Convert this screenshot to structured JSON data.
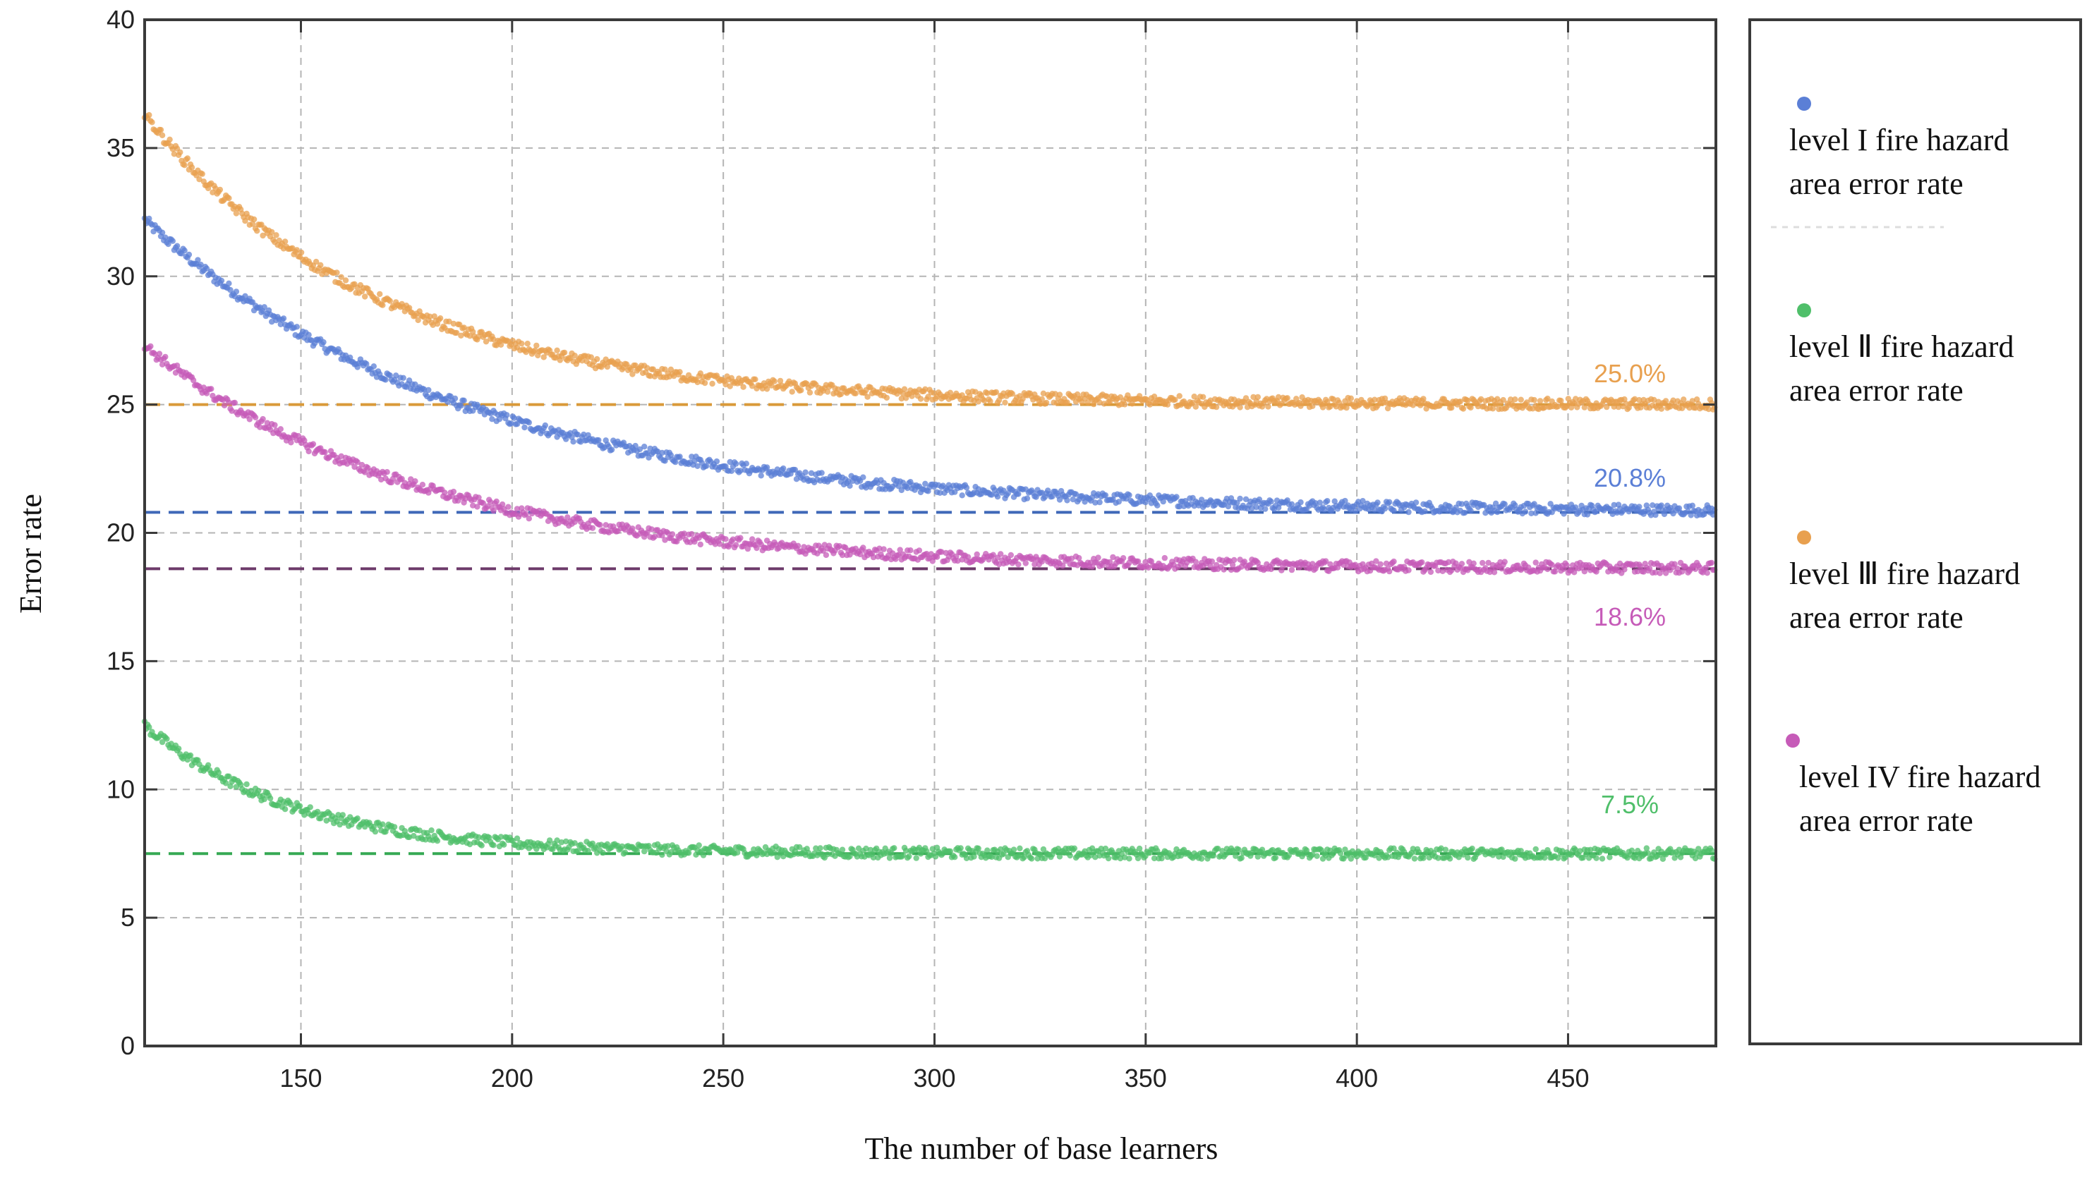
{
  "chart_data": {
    "type": "scatter",
    "title": "",
    "xlabel": "The number of base learners",
    "ylabel": "Error rate",
    "xlim": [
      113,
      485
    ],
    "ylim": [
      0,
      40
    ],
    "x_ticks": [
      150,
      200,
      250,
      300,
      350,
      400,
      450
    ],
    "y_ticks": [
      0,
      5,
      10,
      15,
      20,
      25,
      30,
      35,
      40
    ],
    "grid": true,
    "legend_position": "right",
    "series": [
      {
        "name": "level I fire hazard area error rate",
        "color": "#5b7fd6",
        "start": 32.2,
        "asymptote": 20.8,
        "tau": 75,
        "asymptote_label": "20.8%"
      },
      {
        "name": "level II  fire hazard area error rate",
        "color": "#4fbf6a",
        "start": 12.5,
        "asymptote": 7.5,
        "tau": 35,
        "asymptote_label": "7.5%"
      },
      {
        "name": "level III fire hazard area error rate",
        "color": "#e8a04f",
        "start": 36.3,
        "asymptote": 25.0,
        "tau": 55,
        "asymptote_label": "25.0%"
      },
      {
        "name": "level IV fire hazard area error rate",
        "color": "#c65bb8",
        "start": 27.3,
        "asymptote": 18.6,
        "tau": 65,
        "asymptote_label": "18.6%"
      }
    ],
    "reference_lines": [
      {
        "y": 25.0,
        "color": "#d99a3a"
      },
      {
        "y": 20.8,
        "color": "#3f68b8"
      },
      {
        "y": 18.6,
        "color": "#6d3a6a"
      },
      {
        "y": 7.5,
        "color": "#36a954"
      }
    ],
    "legend_lines": [
      [
        "level I fire hazard",
        "area error rate"
      ],
      [
        "level Ⅱ  fire hazard",
        "area error rate"
      ],
      [
        "level Ⅲ fire hazard",
        "area error rate"
      ],
      [
        "level IV fire hazard",
        "area error rate"
      ]
    ]
  }
}
